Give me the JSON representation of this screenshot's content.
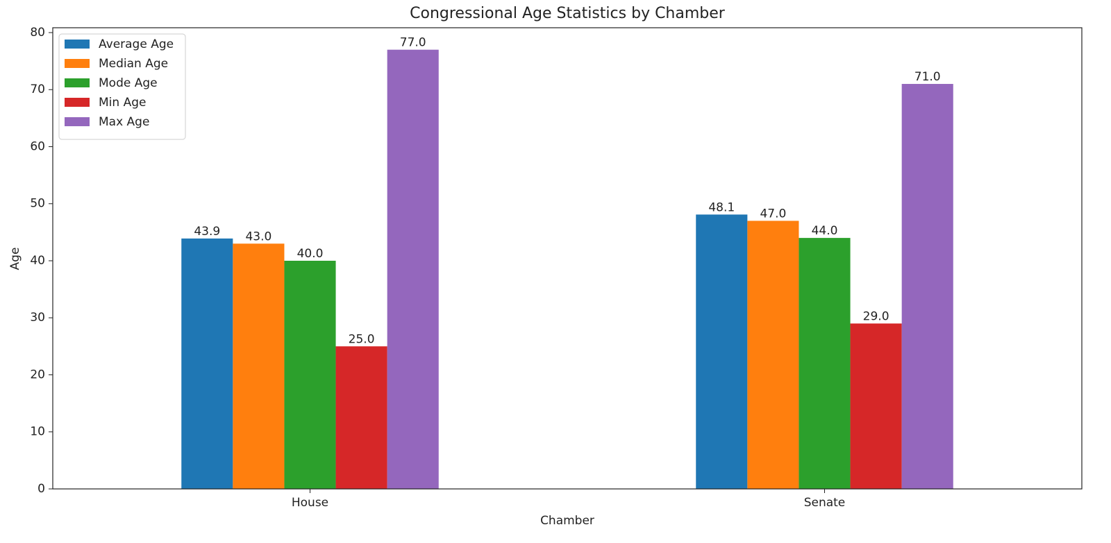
{
  "chart_data": {
    "type": "bar",
    "title": "Congressional Age Statistics by Chamber",
    "x_label": "Chamber",
    "y_label": "Age",
    "categories": [
      "House",
      "Senate"
    ],
    "series": [
      {
        "name": "Average Age",
        "color": "#1f77b4",
        "values": [
          43.9,
          48.1
        ],
        "value_labels": [
          "43.9",
          "48.1"
        ]
      },
      {
        "name": "Median Age",
        "color": "#ff7f0e",
        "values": [
          43,
          47
        ],
        "value_labels": [
          "43.0",
          "47.0"
        ]
      },
      {
        "name": "Mode Age",
        "color": "#2ca02c",
        "values": [
          40,
          44
        ],
        "value_labels": [
          "40.0",
          "44.0"
        ]
      },
      {
        "name": "Min Age",
        "color": "#d62728",
        "values": [
          25,
          29
        ],
        "value_labels": [
          "25.0",
          "29.0"
        ]
      },
      {
        "name": "Max Age",
        "color": "#9467bd",
        "values": [
          77,
          71
        ],
        "value_labels": [
          "77.0",
          "71.0"
        ]
      }
    ],
    "ylim": [
      0,
      80.85
    ],
    "yticks": [
      0,
      10,
      20,
      30,
      40,
      50,
      60,
      70,
      80
    ],
    "legend": "upper left",
    "grid": false
  }
}
